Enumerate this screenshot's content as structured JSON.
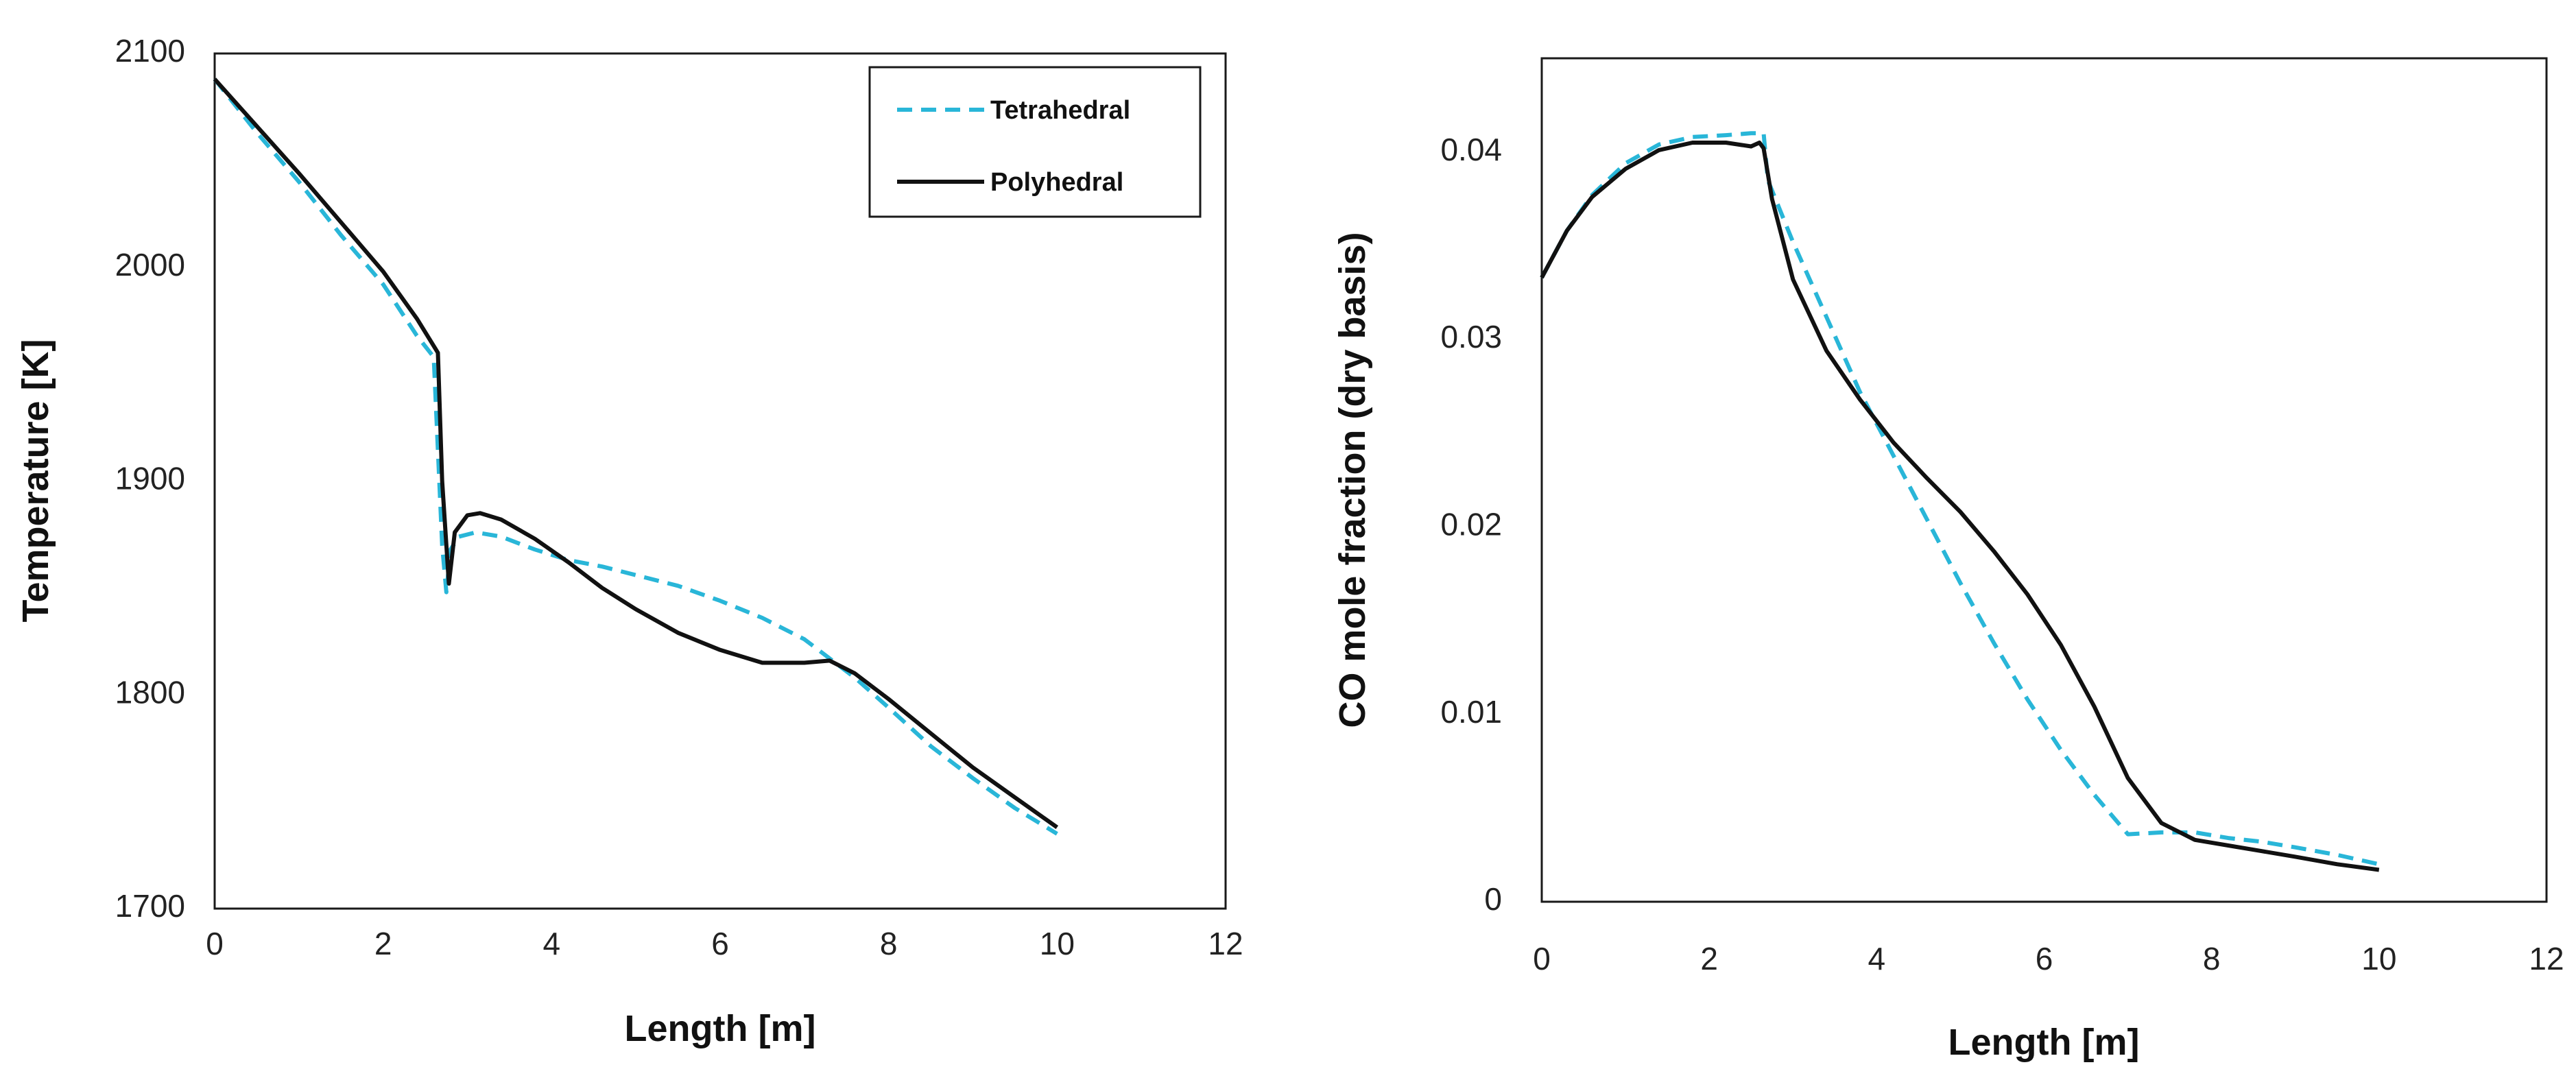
{
  "chart_data": [
    {
      "type": "line",
      "title": "",
      "xlabel": "Length [m]",
      "ylabel": "Temperature [K]",
      "xlim": [
        0,
        12
      ],
      "ylim": [
        1700,
        2100
      ],
      "xticks": [
        "0",
        "2",
        "4",
        "6",
        "8",
        "10",
        "12"
      ],
      "yticks": [
        "1700",
        "1800",
        "1900",
        "2000",
        "2100"
      ],
      "grid": false,
      "legend": "top-right",
      "series": [
        {
          "name": "Tetrahedral",
          "color": "#29b6d8",
          "style": "dashed",
          "x": [
            0,
            0.5,
            1,
            1.5,
            2,
            2.4,
            2.6,
            2.7,
            2.75,
            2.8,
            2.9,
            3.1,
            3.4,
            3.8,
            4.2,
            4.6,
            5,
            5.5,
            6,
            6.5,
            7,
            7.3,
            7.6,
            8,
            8.5,
            9,
            9.5,
            10
          ],
          "y": [
            2088,
            2063,
            2040,
            2015,
            1992,
            1968,
            1958,
            1870,
            1848,
            1868,
            1874,
            1876,
            1874,
            1868,
            1863,
            1860,
            1856,
            1851,
            1844,
            1836,
            1826,
            1817,
            1808,
            1794,
            1776,
            1761,
            1747,
            1735
          ]
        },
        {
          "name": "Polyhedral",
          "color": "#111111",
          "style": "solid",
          "x": [
            0,
            0.5,
            1,
            1.5,
            2,
            2.4,
            2.65,
            2.7,
            2.78,
            2.85,
            3,
            3.15,
            3.4,
            3.8,
            4.2,
            4.6,
            5,
            5.5,
            6,
            6.5,
            7,
            7.3,
            7.6,
            8,
            8.5,
            9,
            9.5,
            10
          ],
          "y": [
            2088,
            2066,
            2044,
            2021,
            1998,
            1976,
            1960,
            1900,
            1852,
            1876,
            1884,
            1885,
            1882,
            1873,
            1862,
            1850,
            1840,
            1829,
            1821,
            1815,
            1815,
            1816,
            1810,
            1798,
            1782,
            1766,
            1752,
            1738
          ]
        }
      ]
    },
    {
      "type": "line",
      "title": "",
      "xlabel": "Length [m]",
      "ylabel": "CO mole fraction (dry basis)",
      "xlim": [
        0,
        12
      ],
      "ylim": [
        0,
        0.045
      ],
      "xticks": [
        "0",
        "2",
        "4",
        "6",
        "8",
        "10",
        "12"
      ],
      "yticks": [
        "0",
        "0.01",
        "0.02",
        "0.03",
        "0.04"
      ],
      "grid": false,
      "legend": "none",
      "series": [
        {
          "name": "Tetrahedral",
          "color": "#29b6d8",
          "style": "dashed",
          "x": [
            0,
            0.3,
            0.6,
            1,
            1.4,
            1.8,
            2.2,
            2.5,
            2.65,
            2.7,
            3,
            3.4,
            3.8,
            4.2,
            4.6,
            5,
            5.4,
            5.8,
            6.2,
            6.6,
            7,
            7.4,
            7.8,
            8.2,
            8.6,
            9,
            9.5,
            10
          ],
          "y": [
            0.0333,
            0.0358,
            0.0377,
            0.0394,
            0.0404,
            0.0408,
            0.0409,
            0.041,
            0.041,
            0.0385,
            0.0352,
            0.0312,
            0.0272,
            0.0238,
            0.0204,
            0.017,
            0.0138,
            0.0108,
            0.0081,
            0.0057,
            0.0036,
            0.0037,
            0.0037,
            0.0034,
            0.0032,
            0.0029,
            0.0025,
            0.002
          ]
        },
        {
          "name": "Polyhedral",
          "color": "#111111",
          "style": "solid",
          "x": [
            0,
            0.3,
            0.6,
            1,
            1.4,
            1.8,
            2.2,
            2.5,
            2.6,
            2.65,
            2.75,
            3,
            3.4,
            3.8,
            4.2,
            4.6,
            5,
            5.4,
            5.8,
            6.2,
            6.6,
            7,
            7.4,
            7.8,
            8.2,
            8.6,
            9,
            9.5,
            10
          ],
          "y": [
            0.0333,
            0.0358,
            0.0376,
            0.0391,
            0.0401,
            0.0405,
            0.0405,
            0.0403,
            0.0405,
            0.0402,
            0.0375,
            0.0332,
            0.0294,
            0.0268,
            0.0245,
            0.0226,
            0.0208,
            0.0187,
            0.0164,
            0.0137,
            0.0104,
            0.0066,
            0.0042,
            0.0033,
            0.003,
            0.0027,
            0.0024,
            0.002,
            0.0017
          ]
        }
      ]
    }
  ]
}
